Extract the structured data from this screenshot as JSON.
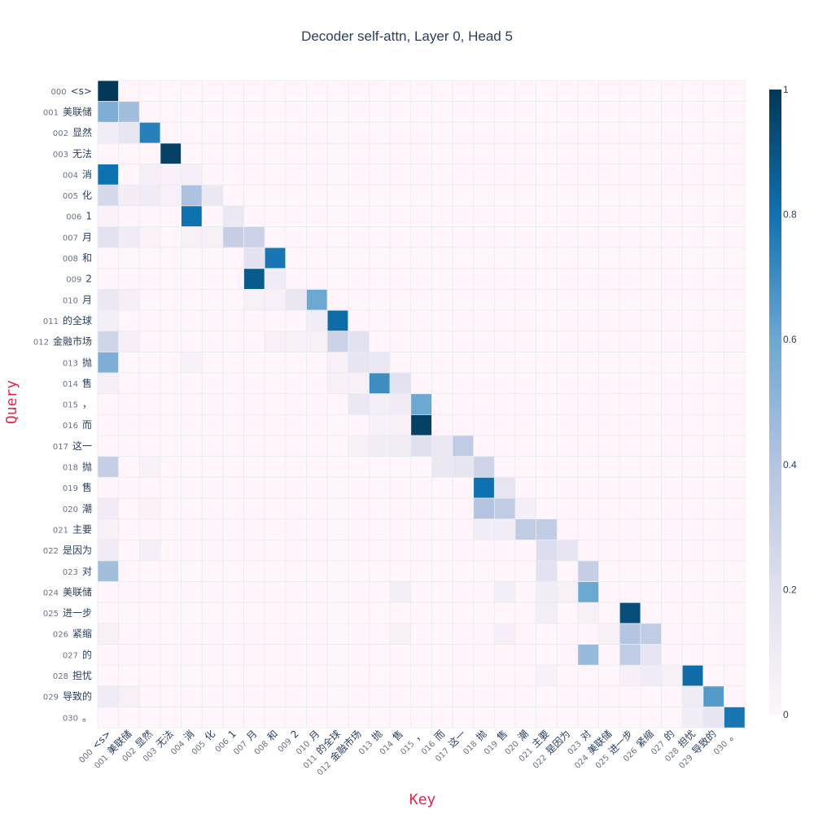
{
  "chart_data": {
    "type": "heatmap",
    "title": "Decoder self-attn, Layer 0, Head 5",
    "xlabel": "Key",
    "ylabel": "Query",
    "tokens": [
      "<s>",
      "美联储",
      "显然",
      "无法",
      "消",
      "化",
      "1",
      "月",
      "和",
      "2",
      "月",
      "的全球",
      "金融市场",
      "抛",
      "售",
      "，",
      "而",
      "这一",
      "抛",
      "售",
      "潮",
      "主要",
      "是因为",
      "对",
      "美联储",
      "进一步",
      "紧缩",
      "的",
      "担忧",
      "导致的",
      "。"
    ],
    "colorscale": [
      [
        0,
        "#fff5fa"
      ],
      [
        0.2,
        "#e0e0ef"
      ],
      [
        0.4,
        "#b5c4e0"
      ],
      [
        0.6,
        "#6ba8d2"
      ],
      [
        0.8,
        "#0f72b0"
      ],
      [
        1,
        "#023858"
      ]
    ],
    "zlim": [
      0,
      1
    ],
    "colorbar_ticks": [
      0,
      0.2,
      0.4,
      0.6,
      0.8,
      1
    ],
    "colorbar_tick_labels": [
      "0",
      "0.2",
      "0.4",
      "0.6",
      "0.8",
      "1"
    ],
    "cells": [
      [
        0,
        0,
        1.0
      ],
      [
        1,
        0,
        0.55
      ],
      [
        1,
        1,
        0.45
      ],
      [
        2,
        0,
        0.08
      ],
      [
        2,
        1,
        0.15
      ],
      [
        2,
        2,
        0.75
      ],
      [
        3,
        3,
        0.97
      ],
      [
        4,
        0,
        0.8
      ],
      [
        4,
        2,
        0.06
      ],
      [
        4,
        3,
        0.04
      ],
      [
        4,
        4,
        0.06
      ],
      [
        5,
        0,
        0.25
      ],
      [
        5,
        1,
        0.08
      ],
      [
        5,
        2,
        0.1
      ],
      [
        5,
        3,
        0.05
      ],
      [
        5,
        4,
        0.42
      ],
      [
        5,
        5,
        0.12
      ],
      [
        6,
        0,
        0.03
      ],
      [
        6,
        4,
        0.8
      ],
      [
        6,
        6,
        0.12
      ],
      [
        7,
        0,
        0.18
      ],
      [
        7,
        1,
        0.1
      ],
      [
        7,
        2,
        0.03
      ],
      [
        7,
        4,
        0.05
      ],
      [
        7,
        5,
        0.05
      ],
      [
        7,
        6,
        0.32
      ],
      [
        7,
        7,
        0.3
      ],
      [
        8,
        7,
        0.17
      ],
      [
        8,
        8,
        0.78
      ],
      [
        9,
        7,
        0.88
      ],
      [
        9,
        8,
        0.1
      ],
      [
        10,
        0,
        0.12
      ],
      [
        10,
        1,
        0.06
      ],
      [
        10,
        7,
        0.05
      ],
      [
        10,
        8,
        0.05
      ],
      [
        10,
        9,
        0.14
      ],
      [
        10,
        10,
        0.6
      ],
      [
        11,
        0,
        0.07
      ],
      [
        11,
        10,
        0.08
      ],
      [
        11,
        11,
        0.82
      ],
      [
        12,
        0,
        0.28
      ],
      [
        12,
        1,
        0.06
      ],
      [
        12,
        8,
        0.05
      ],
      [
        12,
        9,
        0.05
      ],
      [
        12,
        10,
        0.05
      ],
      [
        12,
        11,
        0.3
      ],
      [
        12,
        12,
        0.18
      ],
      [
        13,
        0,
        0.55
      ],
      [
        13,
        4,
        0.04
      ],
      [
        13,
        11,
        0.05
      ],
      [
        13,
        12,
        0.15
      ],
      [
        13,
        13,
        0.12
      ],
      [
        14,
        0,
        0.06
      ],
      [
        14,
        11,
        0.05
      ],
      [
        14,
        12,
        0.05
      ],
      [
        14,
        13,
        0.7
      ],
      [
        14,
        14,
        0.18
      ],
      [
        15,
        12,
        0.12
      ],
      [
        15,
        13,
        0.07
      ],
      [
        15,
        14,
        0.1
      ],
      [
        15,
        15,
        0.6
      ],
      [
        16,
        13,
        0.04
      ],
      [
        16,
        14,
        0.04
      ],
      [
        16,
        15,
        0.97
      ],
      [
        17,
        12,
        0.05
      ],
      [
        17,
        13,
        0.08
      ],
      [
        17,
        14,
        0.08
      ],
      [
        17,
        15,
        0.2
      ],
      [
        17,
        16,
        0.12
      ],
      [
        17,
        17,
        0.35
      ],
      [
        18,
        0,
        0.32
      ],
      [
        18,
        2,
        0.04
      ],
      [
        18,
        16,
        0.12
      ],
      [
        18,
        17,
        0.15
      ],
      [
        18,
        18,
        0.28
      ],
      [
        19,
        18,
        0.8
      ],
      [
        19,
        19,
        0.15
      ],
      [
        20,
        0,
        0.1
      ],
      [
        20,
        2,
        0.03
      ],
      [
        20,
        18,
        0.4
      ],
      [
        20,
        19,
        0.35
      ],
      [
        20,
        20,
        0.07
      ],
      [
        21,
        0,
        0.05
      ],
      [
        21,
        18,
        0.08
      ],
      [
        21,
        19,
        0.08
      ],
      [
        21,
        20,
        0.35
      ],
      [
        21,
        21,
        0.35
      ],
      [
        22,
        0,
        0.1
      ],
      [
        22,
        2,
        0.06
      ],
      [
        22,
        21,
        0.22
      ],
      [
        22,
        22,
        0.15
      ],
      [
        23,
        0,
        0.45
      ],
      [
        23,
        21,
        0.18
      ],
      [
        23,
        23,
        0.32
      ],
      [
        24,
        14,
        0.07
      ],
      [
        24,
        19,
        0.07
      ],
      [
        24,
        21,
        0.08
      ],
      [
        24,
        22,
        0.05
      ],
      [
        24,
        23,
        0.6
      ],
      [
        25,
        21,
        0.07
      ],
      [
        25,
        23,
        0.05
      ],
      [
        25,
        25,
        0.92
      ],
      [
        26,
        0,
        0.05
      ],
      [
        26,
        14,
        0.05
      ],
      [
        26,
        19,
        0.06
      ],
      [
        26,
        24,
        0.05
      ],
      [
        26,
        25,
        0.4
      ],
      [
        26,
        26,
        0.35
      ],
      [
        27,
        23,
        0.48
      ],
      [
        27,
        25,
        0.35
      ],
      [
        27,
        26,
        0.15
      ],
      [
        28,
        21,
        0.04
      ],
      [
        28,
        25,
        0.06
      ],
      [
        28,
        26,
        0.1
      ],
      [
        28,
        27,
        0.05
      ],
      [
        28,
        28,
        0.82
      ],
      [
        29,
        0,
        0.1
      ],
      [
        29,
        1,
        0.05
      ],
      [
        29,
        28,
        0.1
      ],
      [
        29,
        29,
        0.65
      ],
      [
        30,
        28,
        0.08
      ],
      [
        30,
        29,
        0.15
      ],
      [
        30,
        30,
        0.78
      ]
    ]
  }
}
